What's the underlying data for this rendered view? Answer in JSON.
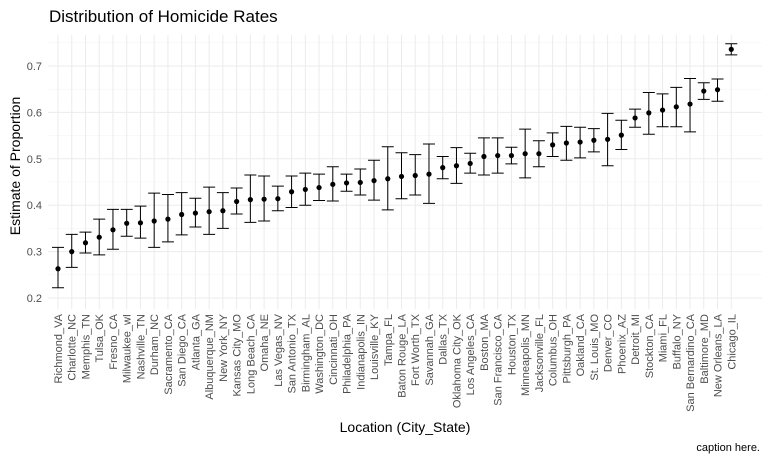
{
  "chart_data": {
    "type": "scatter",
    "title": "Distribution of Homicide Rates",
    "xlabel": "Location (City_State)",
    "ylabel": "Estimate of Proportion",
    "caption": "caption here.",
    "ylim": [
      0.2,
      0.75
    ],
    "yticks": [
      0.2,
      0.3,
      0.4,
      0.5,
      0.6,
      0.7
    ],
    "grid": true,
    "legend": "none",
    "categories": [
      "Richmond_VA",
      "Charlotte_NC",
      "Memphis_TN",
      "Tulsa_OK",
      "Fresno_CA",
      "Milwaukee_wI",
      "Nashville_TN",
      "Durham_NC",
      "Sacramento_CA",
      "San Diego_CA",
      "Atlanta_GA",
      "Albuquerque_NM",
      "New York_NY",
      "Kansas City_MO",
      "Long Beach_CA",
      "Omaha_NE",
      "Las Vegas_NV",
      "San Antonio_TX",
      "Birmingham_AL",
      "Washington_DC",
      "Cincinnati_OH",
      "Philadelphia_PA",
      "Indianapolis_IN",
      "Louisville_KY",
      "Tampa_FL",
      "Baton Rouge_LA",
      "Fort Worth_TX",
      "Savannah_GA",
      "Dallas_TX",
      "Oklahoma City_OK",
      "Los Angeles_CA",
      "Boston_MA",
      "San Francisco_CA",
      "Houston_TX",
      "Minneapolis_MN",
      "Jacksonville_FL",
      "Columbus_OH",
      "Pittsburgh_PA",
      "Oakland_CA",
      "St. Louis_MO",
      "Denver_CO",
      "Phoenix_AZ",
      "Detroit_MI",
      "Stockton_CA",
      "Miami_FL",
      "Buffalo_NY",
      "San Bernardino_CA",
      "Baltimore_MD",
      "New Orleans_LA",
      "Chicago_IL"
    ],
    "estimate": [
      0.263,
      0.3,
      0.319,
      0.331,
      0.347,
      0.361,
      0.362,
      0.366,
      0.37,
      0.38,
      0.383,
      0.386,
      0.388,
      0.408,
      0.412,
      0.413,
      0.414,
      0.429,
      0.434,
      0.438,
      0.445,
      0.448,
      0.449,
      0.453,
      0.457,
      0.462,
      0.464,
      0.467,
      0.481,
      0.485,
      0.49,
      0.505,
      0.507,
      0.507,
      0.511,
      0.511,
      0.53,
      0.534,
      0.536,
      0.54,
      0.542,
      0.551,
      0.588,
      0.599,
      0.605,
      0.612,
      0.618,
      0.646,
      0.649,
      0.736
    ],
    "conf_low": [
      0.222,
      0.266,
      0.297,
      0.293,
      0.305,
      0.333,
      0.329,
      0.309,
      0.321,
      0.336,
      0.353,
      0.337,
      0.35,
      0.381,
      0.363,
      0.366,
      0.388,
      0.395,
      0.4,
      0.41,
      0.409,
      0.43,
      0.422,
      0.411,
      0.39,
      0.414,
      0.422,
      0.404,
      0.457,
      0.447,
      0.469,
      0.465,
      0.469,
      0.489,
      0.459,
      0.483,
      0.505,
      0.497,
      0.502,
      0.515,
      0.485,
      0.52,
      0.568,
      0.553,
      0.569,
      0.569,
      0.558,
      0.628,
      0.624,
      0.724
    ],
    "conf_high": [
      0.309,
      0.337,
      0.342,
      0.37,
      0.391,
      0.391,
      0.398,
      0.426,
      0.423,
      0.427,
      0.415,
      0.439,
      0.427,
      0.437,
      0.465,
      0.463,
      0.441,
      0.463,
      0.469,
      0.467,
      0.483,
      0.467,
      0.478,
      0.497,
      0.526,
      0.513,
      0.509,
      0.532,
      0.505,
      0.524,
      0.512,
      0.545,
      0.545,
      0.525,
      0.564,
      0.539,
      0.556,
      0.57,
      0.568,
      0.565,
      0.598,
      0.583,
      0.607,
      0.643,
      0.64,
      0.654,
      0.673,
      0.664,
      0.672,
      0.748
    ]
  }
}
